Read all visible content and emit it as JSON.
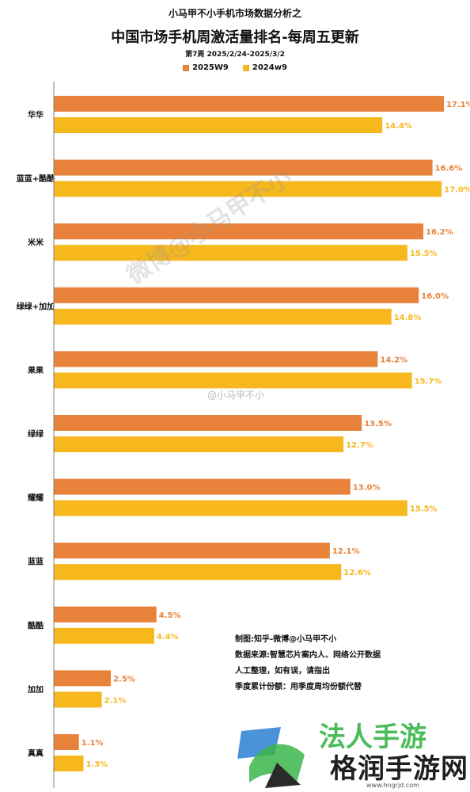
{
  "header": {
    "subtitle": "小马甲不小手机市场数据分析之",
    "title": "中国市场手机周激活量排名-每周五更新",
    "period": "第7周 2025/2/24-2025/3/2"
  },
  "colors": {
    "series_2025": "#e8823a",
    "series_2024": "#f6b81d",
    "axis": "#7f7f7f"
  },
  "chart_data": {
    "type": "bar",
    "orientation": "horizontal",
    "categories": [
      "华华",
      "蓝蓝+酷酷",
      "米米",
      "绿绿+加加",
      "果果",
      "绿绿",
      "耀耀",
      "蓝蓝",
      "酷酷",
      "加加",
      "真真"
    ],
    "series": [
      {
        "name": "2025W9",
        "values": [
          17.1,
          16.6,
          16.2,
          16.0,
          14.2,
          13.5,
          13.0,
          12.1,
          4.5,
          2.5,
          1.1
        ],
        "labels": [
          "17.1%",
          "16.6%",
          "16.2%",
          "16.0%",
          "14.2%",
          "13.5%",
          "13.0%",
          "12.1%",
          "4.5%",
          "2.5%",
          "1.1%"
        ]
      },
      {
        "name": "2024w9",
        "values": [
          14.4,
          17.0,
          15.5,
          14.8,
          15.7,
          12.7,
          15.5,
          12.6,
          4.4,
          2.1,
          1.3
        ],
        "labels": [
          "14.4%",
          "17.0%",
          "15.5%",
          "14.8%",
          "15.7%",
          "12.7%",
          "15.5%",
          "12.6%",
          "4.4%",
          "2.1%",
          "1.3%"
        ]
      }
    ],
    "xlim": [
      0,
      17.1
    ],
    "grid": false,
    "legend": "top-center"
  },
  "notes": [
    "制图:知乎-微博@小马甲不小",
    "数据来源:智慧芯片案内人、网络公开数据",
    "人工整理，如有误，请指出",
    "季度累计份额：用季度周均份额代替"
  ],
  "watermarks": {
    "main": "微博@小马甲不小",
    "secondary": "@小马甲不小"
  },
  "site": {
    "brand": "法人手游",
    "name": "格润手游网",
    "url": "www.hngrjd.com"
  }
}
